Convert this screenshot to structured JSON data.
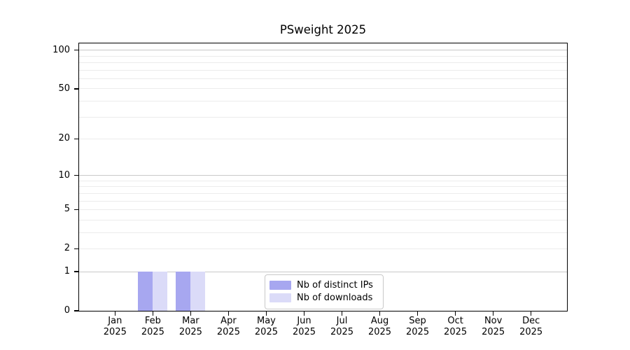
{
  "title": "PSweight 2025",
  "chart_data": {
    "type": "bar",
    "title": "PSweight 2025",
    "categories": [
      "Jan",
      "Feb",
      "Mar",
      "Apr",
      "May",
      "Jun",
      "Jul",
      "Aug",
      "Sep",
      "Oct",
      "Nov",
      "Dec"
    ],
    "category_year": "2025",
    "series": [
      {
        "name": "Nb of distinct IPs",
        "color": "#a7a7f0",
        "values": [
          0,
          1,
          1,
          0,
          0,
          0,
          0,
          0,
          0,
          0,
          0,
          0
        ]
      },
      {
        "name": "Nb of downloads",
        "color": "#dbdbf8",
        "values": [
          0,
          1,
          1,
          0,
          0,
          0,
          0,
          0,
          0,
          0,
          0,
          0
        ]
      }
    ],
    "y_scale": "log1p",
    "ylim": [
      0,
      113
    ],
    "y_ticks": [
      0,
      1,
      2,
      5,
      10,
      20,
      50,
      100
    ],
    "y_major_gridlines": [
      1,
      10,
      100
    ],
    "y_minor_gridlines": [
      2,
      3,
      4,
      5,
      6,
      7,
      8,
      9,
      20,
      30,
      40,
      50,
      60,
      70,
      80,
      90
    ],
    "xlabel": "",
    "ylabel": "",
    "grid": true,
    "legend_position": "lower center",
    "colors": {
      "axis": "#000000",
      "major_grid": "#c9c9c9",
      "minor_grid": "#ececec",
      "background": "#ffffff"
    }
  }
}
